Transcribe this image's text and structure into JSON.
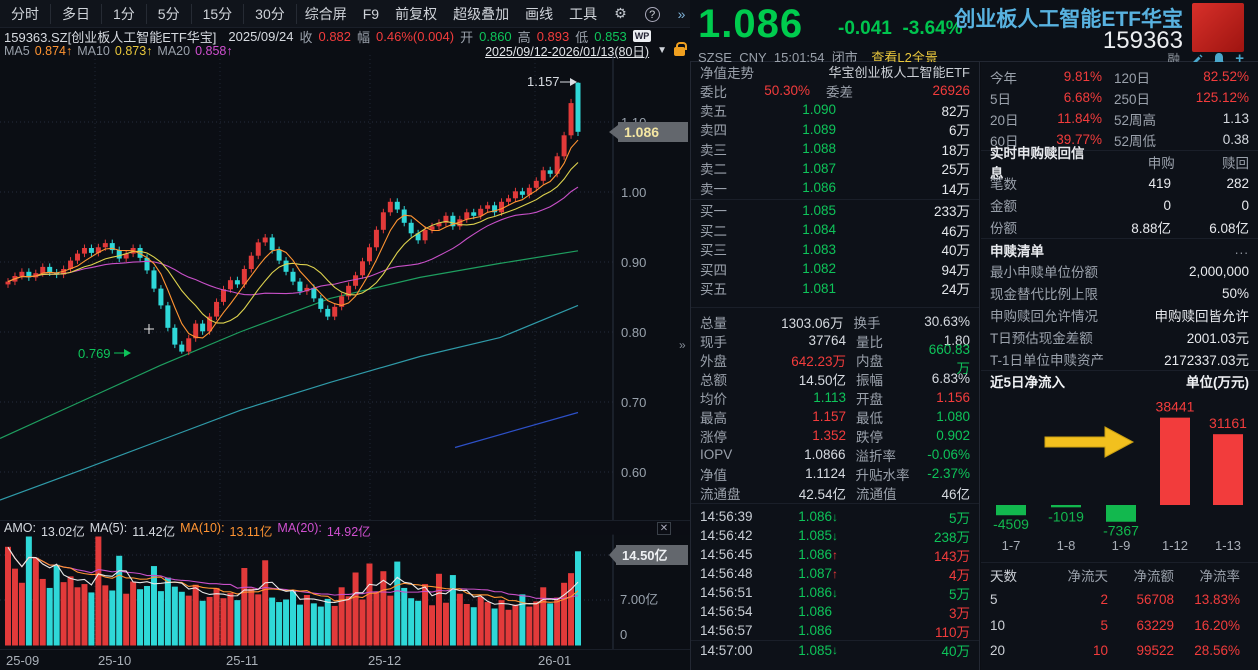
{
  "toolbar": {
    "tabs": [
      "分时",
      "多日",
      "1分",
      "5分",
      "15分",
      "30分"
    ],
    "menus": [
      "综合屏",
      "F9",
      "前复权",
      "超级叠加",
      "画线",
      "工具"
    ],
    "gear": "⚙",
    "help": "?",
    "more": "»"
  },
  "info_bar": {
    "symbol": "159363.SZ[创业板人工智能ETF华宝]",
    "date": "2025/09/24",
    "close_label": "收",
    "close": "0.882",
    "range_label": "幅",
    "range": "0.46%(0.004)",
    "open_label": "开",
    "open": "0.860",
    "high_label": "高",
    "high": "0.893",
    "low_label": "低",
    "low": "0.853",
    "badge": "WP"
  },
  "ma_bar": {
    "ma5_label": "MA5",
    "ma5": "0.874↑",
    "ma10_label": "MA10",
    "ma10": "0.873↑",
    "ma20_label": "MA20",
    "ma20": "0.858↑",
    "date_range": "2025/09/12-2026/01/13(80日)",
    "dropdown": "▼"
  },
  "quote": {
    "price": "1.086",
    "change": "-0.041",
    "pct": "-3.64%",
    "exchange": "SZSE",
    "currency": "CNY",
    "time": "15:01:54",
    "status": "闭市",
    "l2_link": "查看L2全景",
    "title": "创业板人工智能ETF华宝",
    "code": "159363",
    "margin_flag": "融",
    "plus_icon": "+"
  },
  "order_book": {
    "header_left": "净值走势",
    "header_right": "华宝创业板人工智能ETF",
    "weibi_label": "委比",
    "weibi": "50.30%",
    "weicha_label": "委差",
    "weicha": "26926",
    "asks": [
      [
        "卖五",
        "1.090",
        "82万"
      ],
      [
        "卖四",
        "1.089",
        "6万"
      ],
      [
        "卖三",
        "1.088",
        "18万"
      ],
      [
        "卖二",
        "1.087",
        "25万"
      ],
      [
        "卖一",
        "1.086",
        "14万"
      ]
    ],
    "bids": [
      [
        "买一",
        "1.085",
        "233万"
      ],
      [
        "买二",
        "1.084",
        "46万"
      ],
      [
        "买三",
        "1.083",
        "40万"
      ],
      [
        "买四",
        "1.082",
        "94万"
      ],
      [
        "买五",
        "1.081",
        "24万"
      ]
    ]
  },
  "stats": {
    "rows": [
      [
        "总量",
        "1303.06万",
        "w",
        "换手",
        "30.63%",
        "w"
      ],
      [
        "现手",
        "37764",
        "w",
        "量比",
        "1.80",
        "w"
      ],
      [
        "外盘",
        "642.23万",
        "r",
        "内盘",
        "660.83万",
        "g"
      ],
      [
        "总额",
        "14.50亿",
        "w",
        "振幅",
        "6.83%",
        "w"
      ],
      [
        "均价",
        "1.113",
        "g",
        "开盘",
        "1.156",
        "r"
      ],
      [
        "最高",
        "1.157",
        "r",
        "最低",
        "1.080",
        "g"
      ],
      [
        "涨停",
        "1.352",
        "r",
        "跌停",
        "0.902",
        "g"
      ],
      [
        "IOPV",
        "1.0866",
        "w",
        "溢折率",
        "-0.06%",
        "g"
      ],
      [
        "净值",
        "1.1124",
        "w",
        "升贴水率",
        "-2.37%",
        "g"
      ],
      [
        "流通盘",
        "42.54亿",
        "w",
        "流通值",
        "46亿",
        "w"
      ]
    ]
  },
  "ticks": {
    "rows": [
      {
        "t": "14:56:39",
        "p": "1.086",
        "arrow": "↓",
        "ac": "g",
        "v": "5万",
        "vc": "g"
      },
      {
        "t": "14:56:42",
        "p": "1.085",
        "arrow": "↓",
        "ac": "g",
        "v": "238万",
        "vc": "g"
      },
      {
        "t": "14:56:45",
        "p": "1.086",
        "arrow": "↑",
        "ac": "r",
        "v": "143万",
        "vc": "r"
      },
      {
        "t": "14:56:48",
        "p": "1.087",
        "arrow": "↑",
        "ac": "r",
        "v": "4万",
        "vc": "r"
      },
      {
        "t": "14:56:51",
        "p": "1.086",
        "arrow": "↓",
        "ac": "g",
        "v": "5万",
        "vc": "g"
      },
      {
        "t": "14:56:54",
        "p": "1.086",
        "arrow": "",
        "ac": "g",
        "v": "3万",
        "vc": "r"
      },
      {
        "t": "14:56:57",
        "p": "1.086",
        "arrow": "",
        "ac": "g",
        "v": "110万",
        "vc": "r"
      },
      {
        "t": "14:57:00",
        "p": "1.085",
        "arrow": "↓",
        "ac": "g",
        "v": "40万",
        "vc": "g"
      }
    ]
  },
  "perf": {
    "rows": [
      [
        "今年",
        "9.81%",
        "r",
        "120日",
        "82.52%",
        "r"
      ],
      [
        "5日",
        "6.68%",
        "r",
        "250日",
        "125.12%",
        "r"
      ],
      [
        "20日",
        "11.84%",
        "r",
        "52周高",
        "1.13",
        "w"
      ],
      [
        "60日",
        "39.77%",
        "r",
        "52周低",
        "0.38",
        "w"
      ]
    ]
  },
  "subscription": {
    "title": "实时申购赎回信息",
    "col1": "申购",
    "col2": "赎回",
    "rows": [
      [
        "笔数",
        "419",
        "282"
      ],
      [
        "金额",
        "0",
        "0"
      ],
      [
        "份额",
        "8.88亿",
        "6.08亿"
      ]
    ]
  },
  "redemption_list": {
    "title": "申赎清单",
    "more": "...",
    "rows": [
      [
        "最小申赎单位份额",
        "2,000,000"
      ],
      [
        "现金替代比例上限",
        "50%"
      ],
      [
        "申购赎回允许情况",
        "申购赎回皆允许"
      ],
      [
        "T日预估现金差额",
        "2001.03元"
      ],
      [
        "T-1日单位申赎资产",
        "2172337.03元"
      ]
    ]
  },
  "flow": {
    "title": "近5日净流入",
    "unit": "单位(万元)",
    "table_headers": [
      "天数",
      "净流天",
      "净流额",
      "净流率"
    ],
    "table_rows": [
      [
        "5",
        "2",
        "56708",
        "13.83%"
      ],
      [
        "10",
        "5",
        "63229",
        "16.20%"
      ],
      [
        "20",
        "10",
        "99522",
        "28.56%"
      ]
    ]
  },
  "volume_pane": {
    "amo_label": "AMO:",
    "amo": "13.02亿",
    "ma5_label": "MA(5):",
    "ma5": "11.42亿",
    "ma10_label": "MA(10):",
    "ma10": "13.11亿",
    "ma20_label": "MA(20):",
    "ma20": "14.92亿",
    "tag": "14.50亿",
    "mid_label": "7.00亿",
    "zero_label": "0",
    "close": "✕"
  },
  "chart_data": [
    {
      "type": "candlestick",
      "title": "159363 日K线 2025/09/12-2026/01/13",
      "y_ticks": [
        "1.10",
        "1.00",
        "0.90",
        "0.80",
        "0.70",
        "0.60"
      ],
      "x_labels": [
        "25-09",
        "25-10",
        "25-11",
        "25-12",
        "26-01"
      ],
      "closes": [
        0.872,
        0.88,
        0.886,
        0.878,
        0.884,
        0.893,
        0.885,
        0.882,
        0.89,
        0.902,
        0.912,
        0.92,
        0.913,
        0.921,
        0.927,
        0.917,
        0.905,
        0.912,
        0.92,
        0.906,
        0.888,
        0.862,
        0.838,
        0.806,
        0.782,
        0.772,
        0.791,
        0.812,
        0.801,
        0.822,
        0.843,
        0.861,
        0.874,
        0.868,
        0.89,
        0.909,
        0.928,
        0.935,
        0.917,
        0.902,
        0.886,
        0.872,
        0.858,
        0.863,
        0.848,
        0.833,
        0.822,
        0.836,
        0.851,
        0.866,
        0.881,
        0.901,
        0.921,
        0.946,
        0.971,
        0.986,
        0.975,
        0.956,
        0.941,
        0.931,
        0.946,
        0.951,
        0.956,
        0.966,
        0.951,
        0.961,
        0.971,
        0.966,
        0.976,
        0.981,
        0.971,
        0.986,
        0.991,
        1.001,
        0.996,
        1.006,
        1.016,
        1.031,
        1.026,
        1.051,
        1.081,
        1.127,
        1.086
      ],
      "overrides": {
        "25": {
          "l": 0.769
        },
        "81": {
          "h": 1.133
        },
        "82": {
          "o": 1.156,
          "h": 1.157,
          "l": 1.08
        }
      },
      "annotations": {
        "high": "1.157",
        "low": "0.769",
        "last_price_tag": "1.086"
      },
      "overlays": {
        "green": [
          [
            0,
            0.648
          ],
          [
            80,
            0.7
          ],
          [
            160,
            0.752
          ],
          [
            240,
            0.8
          ],
          [
            330,
            0.848
          ],
          [
            420,
            0.878
          ],
          [
            500,
            0.898
          ],
          [
            578,
            0.916
          ]
        ],
        "teal": [
          [
            0,
            0.56
          ],
          [
            80,
            0.602
          ],
          [
            160,
            0.645
          ],
          [
            240,
            0.688
          ],
          [
            330,
            0.728
          ],
          [
            420,
            0.765
          ],
          [
            500,
            0.792
          ],
          [
            578,
            0.838
          ]
        ],
        "blue": [
          [
            455,
            0.635
          ],
          [
            578,
            0.685
          ]
        ]
      }
    },
    {
      "type": "bar",
      "name": "turnover_volume",
      "unit": "亿",
      "values": [
        15.2,
        11.8,
        9.6,
        17.9,
        13.5,
        10.2,
        8.8,
        12.4,
        9.7,
        10.6,
        8.9,
        9.4,
        8.1,
        18.3,
        9.2,
        8.4,
        13.8,
        7.9,
        9.8,
        8.6,
        9.1,
        12.2,
        8.3,
        10.4,
        9.0,
        8.2,
        7.6,
        9.3,
        6.8,
        7.4,
        8.8,
        7.2,
        8.0,
        6.9,
        11.9,
        8.7,
        7.8,
        13.1,
        7.3,
        6.6,
        7.0,
        8.4,
        6.2,
        7.7,
        6.4,
        5.9,
        7.1,
        6.0,
        8.9,
        7.5,
        11.2,
        7.0,
        12.6,
        8.1,
        11.4,
        7.6,
        12.9,
        8.8,
        7.2,
        6.8,
        9.4,
        6.1,
        11.0,
        6.5,
        10.8,
        7.9,
        6.3,
        5.8,
        7.4,
        6.6,
        5.6,
        6.9,
        5.4,
        6.2,
        7.8,
        5.9,
        6.7,
        8.9,
        6.4,
        7.3,
        9.6,
        11.1,
        14.5
      ]
    },
    {
      "type": "bar",
      "name": "net_inflow_5d",
      "unit": "万元",
      "title": "近5日净流入",
      "categories": [
        "1-7",
        "1-8",
        "1-9",
        "1-12",
        "1-13"
      ],
      "values": [
        -4509,
        -1019,
        -7367,
        38441,
        31161
      ]
    }
  ]
}
